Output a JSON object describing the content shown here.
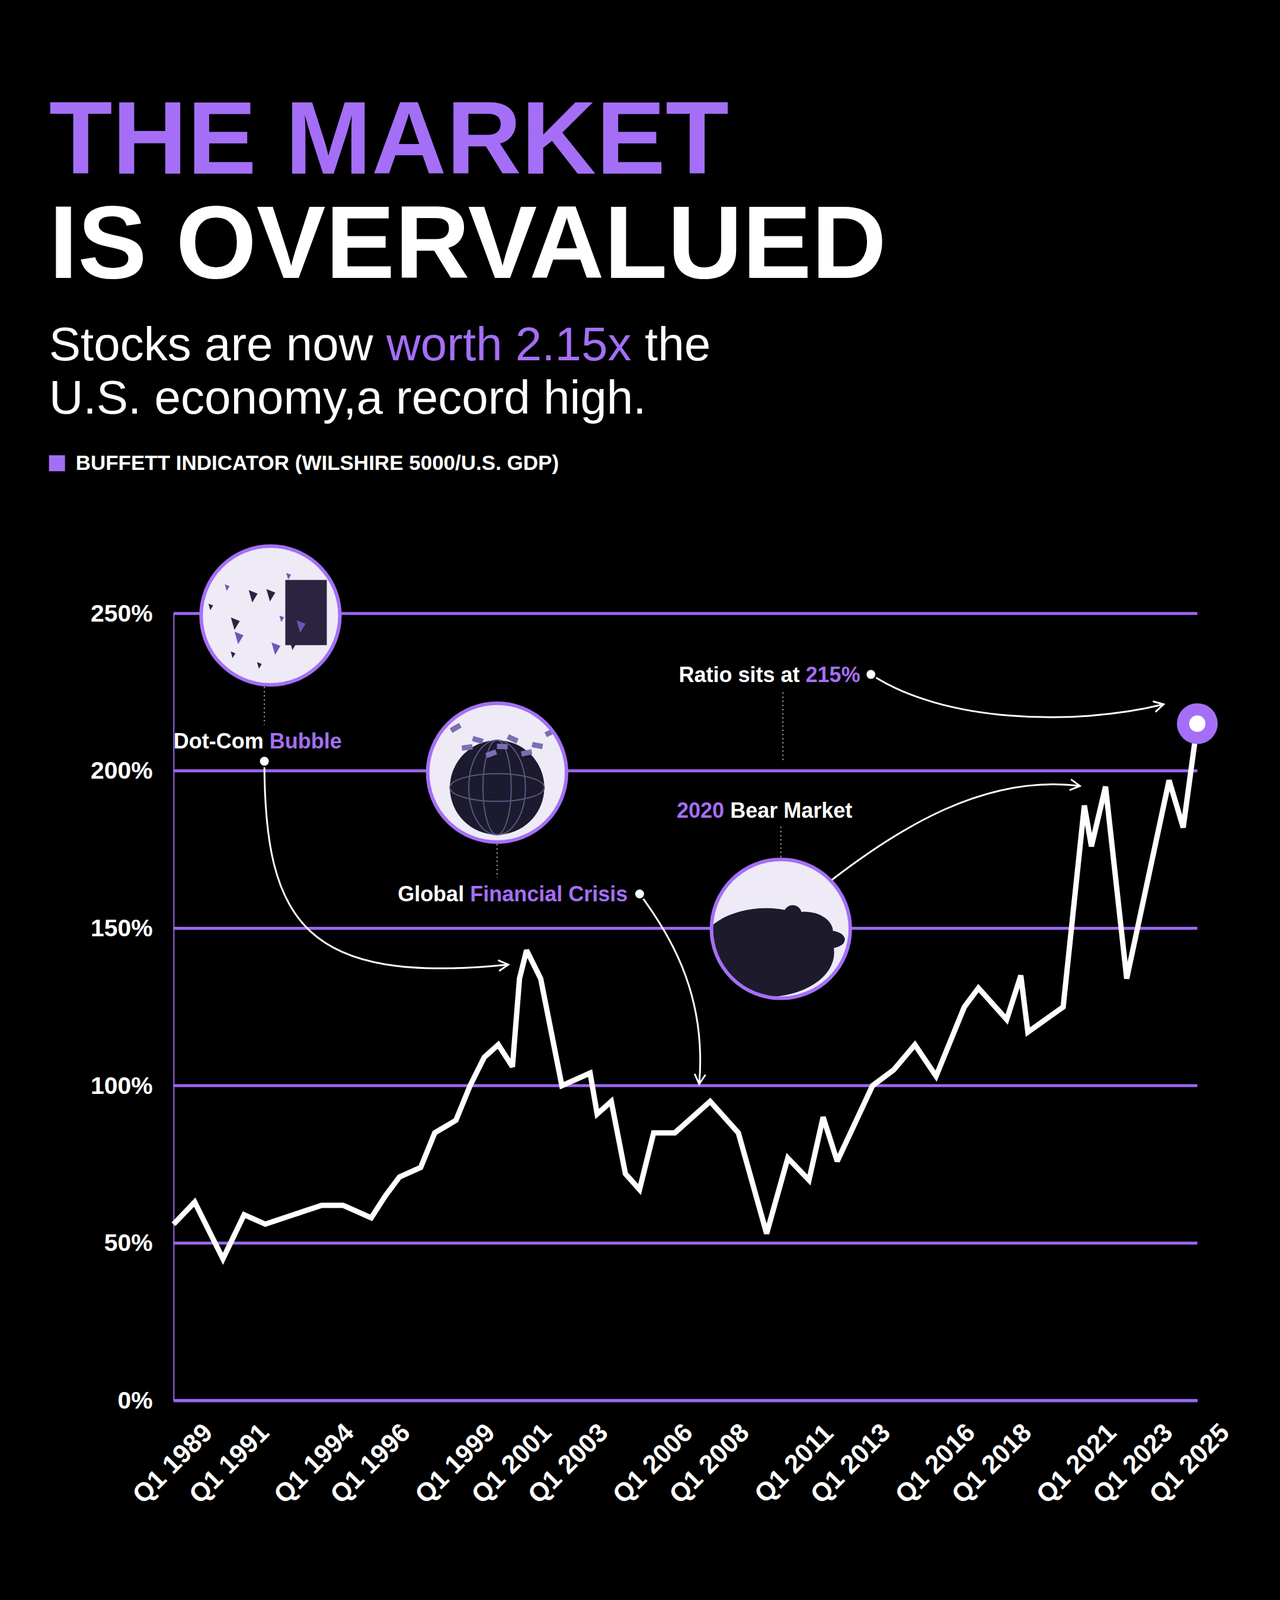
{
  "chart_data": {
    "type": "line",
    "title": [
      {
        "text": "THE MARKET",
        "color": "#a46ff6"
      },
      {
        "text": "IS OVERVALUED",
        "color": "#ffffff"
      }
    ],
    "subtitle": [
      [
        {
          "text": "Stocks are now",
          "color": "#ffffff"
        },
        {
          "text": "worth 2.15x",
          "color": "#a46ff6"
        },
        {
          "text": "the",
          "color": "#ffffff"
        }
      ],
      [
        {
          "text": "U.S. economy,a record high.",
          "color": "#ffffff"
        }
      ]
    ],
    "x": [
      1989,
      1989.75,
      1990.75,
      1991.5,
      1992.25,
      1993.25,
      1994.25,
      1995,
      1996,
      1996.5,
      1997,
      1997.75,
      1998.25,
      1999,
      1999.5,
      2000,
      2000.5,
      2001,
      2001.25,
      2001.5,
      2002,
      2002.75,
      2003.75,
      2004,
      2004.5,
      2005,
      2005.5,
      2006,
      2006.75,
      2008,
      2009,
      2010,
      2010.75,
      2011.5,
      2012,
      2012.5,
      2013.75,
      2014.5,
      2015.25,
      2016,
      2017,
      2017.5,
      2018.5,
      2019,
      2019.25,
      2020.5,
      2021.25,
      2021.5,
      2022,
      2022.75,
      2024.25,
      2024.75,
      2025.25
    ],
    "xlim": [
      1989,
      2025.25
    ],
    "xticks": [
      {
        "value": 1989,
        "label": "Q1 1989"
      },
      {
        "value": 1991,
        "label": "Q1 1991"
      },
      {
        "value": 1994,
        "label": "Q1 1994"
      },
      {
        "value": 1996,
        "label": "Q1 1996"
      },
      {
        "value": 1999,
        "label": "Q1 1999"
      },
      {
        "value": 2001,
        "label": "Q1 2001"
      },
      {
        "value": 2003,
        "label": "Q1 2003"
      },
      {
        "value": 2006,
        "label": "Q1 2006"
      },
      {
        "value": 2008,
        "label": "Q1 2008"
      },
      {
        "value": 2011,
        "label": "Q1 2011"
      },
      {
        "value": 2013,
        "label": "Q1 2013"
      },
      {
        "value": 2016,
        "label": "Q1 2016"
      },
      {
        "value": 2018,
        "label": "Q1 2018"
      },
      {
        "value": 2021,
        "label": "Q1 2021"
      },
      {
        "value": 2023,
        "label": "Q1 2023"
      },
      {
        "value": 2025,
        "label": "Q1 2025"
      }
    ],
    "ylim": [
      0,
      250
    ],
    "yticks": [
      {
        "value": 0,
        "label": "0%"
      },
      {
        "value": 50,
        "label": "50%"
      },
      {
        "value": 100,
        "label": "100%"
      },
      {
        "value": 150,
        "label": "150%"
      },
      {
        "value": 200,
        "label": "200%"
      },
      {
        "value": 250,
        "label": "250%"
      }
    ],
    "grid": true,
    "legend": "top-left",
    "series": [
      {
        "name": "BUFFETT INDICATOR (WILSHIRE 5000/U.S. GDP)",
        "color": "#a46ff6",
        "line_style": "solid",
        "marker": "end",
        "values": [
          56,
          63,
          45,
          59,
          56,
          59,
          62,
          62,
          58,
          65,
          71,
          74,
          85,
          89,
          100,
          109,
          113,
          106,
          134,
          143,
          134,
          100,
          104,
          91,
          95,
          72,
          67,
          85,
          85,
          95,
          85,
          53,
          77,
          70,
          90,
          76,
          100,
          105,
          113,
          103,
          125,
          131,
          121,
          135,
          117,
          125,
          189,
          176,
          195,
          134,
          197,
          182,
          215
        ]
      }
    ],
    "annotations": [
      {
        "runs": [
          {
            "text": "Dot-Com",
            "color": "#ffffff"
          },
          {
            "text": "Bubble",
            "color": "#a46ff6"
          }
        ]
      },
      {
        "runs": [
          {
            "text": "Global",
            "color": "#ffffff"
          },
          {
            "text": "Financial Crisis",
            "color": "#a46ff6"
          }
        ]
      },
      {
        "runs": [
          {
            "text": "2020",
            "color": "#a46ff6"
          },
          {
            "text": "Bear Market",
            "color": "#ffffff"
          }
        ]
      },
      {
        "runs": [
          {
            "text": "Ratio sits at",
            "color": "#ffffff"
          },
          {
            "text": "215%",
            "color": "#a46ff6"
          }
        ]
      }
    ]
  }
}
